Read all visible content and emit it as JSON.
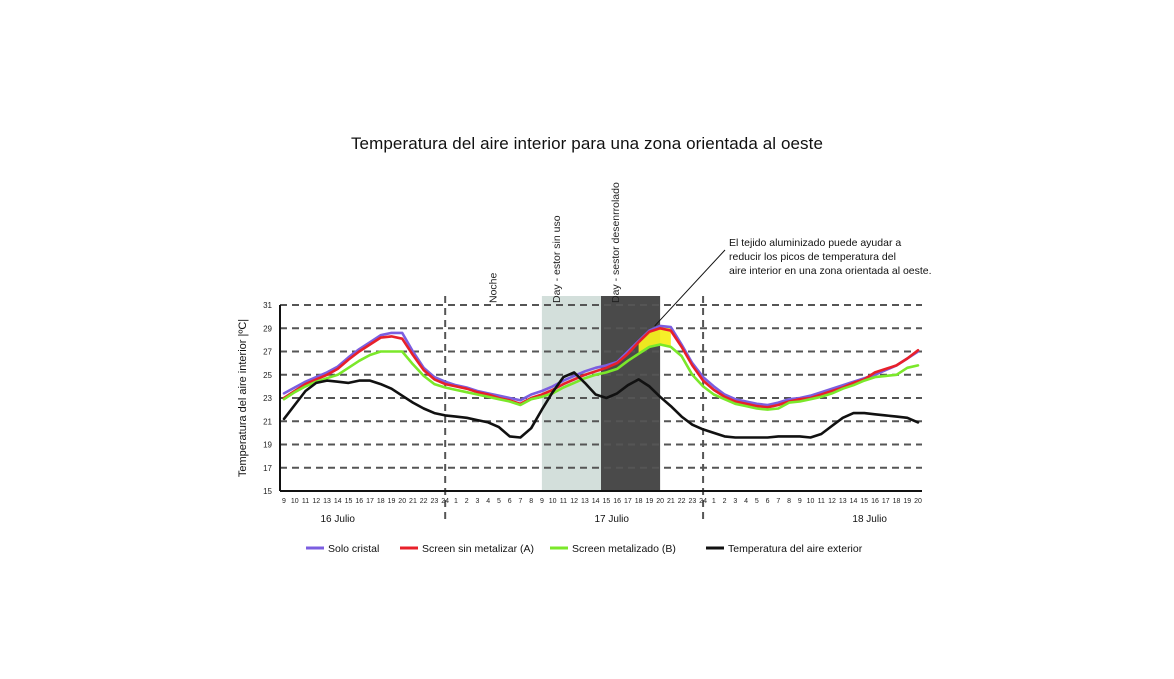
{
  "chart_data": {
    "type": "line",
    "title": "Temperatura del aire interior para una zona orientada al oeste",
    "ylabel": "Temperatura del aire interior  |ºC|",
    "ylim": [
      15,
      31
    ],
    "yticks": [
      15,
      17,
      19,
      21,
      23,
      25,
      27,
      29,
      31
    ],
    "grid": "horizontal dashed",
    "legend_position": "bottom",
    "xlim": [
      9,
      68
    ],
    "hour_labels": [
      "9",
      "10",
      "11",
      "12",
      "13",
      "14",
      "15",
      "16",
      "17",
      "18",
      "19",
      "20",
      "21",
      "22",
      "23",
      "24",
      "1",
      "2",
      "3",
      "4",
      "5",
      "6",
      "7",
      "8",
      "9",
      "10",
      "11",
      "12",
      "13",
      "14",
      "15",
      "16",
      "17",
      "18",
      "19",
      "20",
      "21",
      "22",
      "23",
      "24",
      "1",
      "2",
      "3",
      "4",
      "5",
      "6",
      "7",
      "8",
      "9",
      "10",
      "11",
      "12",
      "13",
      "14",
      "15",
      "16",
      "17",
      "18",
      "19",
      "20"
    ],
    "day_labels": [
      {
        "label": "16 Julio",
        "x": 14
      },
      {
        "label": "17 Julio",
        "x": 39.5
      },
      {
        "label": "18 Julio",
        "x": 63.5
      }
    ],
    "day_dividers": [
      24,
      48
    ],
    "periods": [
      {
        "label": "Noche",
        "x": 28.5
      },
      {
        "label": "Day - estor sin uso",
        "x_start": 33,
        "x_end": 38.5
      },
      {
        "label": "Day - sestor desenrrolado",
        "x_start": 38.5,
        "x_end": 44
      }
    ],
    "annotation": {
      "lines": [
        "El tejido aluminizado puede ayudar a",
        "reducir los picos de temperatura del",
        "aire interior en una zona orientada al oeste."
      ],
      "x": 43.5,
      "y": 29.2
    },
    "x": [
      9,
      10,
      11,
      12,
      13,
      14,
      15,
      16,
      17,
      18,
      19,
      20,
      21,
      22,
      23,
      24,
      25,
      26,
      27,
      28,
      29,
      30,
      31,
      32,
      33,
      34,
      35,
      36,
      37,
      38,
      39,
      40,
      41,
      42,
      43,
      44,
      45,
      46,
      47,
      48,
      49,
      50,
      51,
      52,
      53,
      54,
      55,
      56,
      57,
      58,
      59,
      60,
      61,
      62,
      63,
      64,
      65,
      66,
      67,
      68
    ],
    "series": [
      {
        "name": "Solo cristal",
        "color": "#7b5ee0",
        "values": [
          23.4,
          23.9,
          24.4,
          24.8,
          25.2,
          25.7,
          26.5,
          27.2,
          27.8,
          28.4,
          28.6,
          28.6,
          27.0,
          25.6,
          24.8,
          24.4,
          24.1,
          23.9,
          23.6,
          23.4,
          23.2,
          23.0,
          22.8,
          23.3,
          23.6,
          24.0,
          24.5,
          24.9,
          25.3,
          25.6,
          25.8,
          26.1,
          27.0,
          27.9,
          28.8,
          29.2,
          29.1,
          27.6,
          26.0,
          24.8,
          24.0,
          23.3,
          22.9,
          22.7,
          22.5,
          22.4,
          22.6,
          22.9,
          23.0,
          23.2,
          23.5,
          23.8,
          24.1,
          24.4,
          24.7,
          25.0,
          25.4,
          25.8,
          26.4,
          27.0
        ]
      },
      {
        "name": "Screen sin metalizar (A)",
        "color": "#e8202a",
        "values": [
          23.0,
          23.6,
          24.2,
          24.6,
          25.0,
          25.5,
          26.3,
          27.0,
          27.6,
          28.2,
          28.3,
          28.1,
          26.7,
          25.4,
          24.6,
          24.2,
          24.0,
          23.8,
          23.5,
          23.3,
          23.0,
          22.8,
          22.5,
          23.0,
          23.3,
          23.7,
          24.2,
          24.6,
          25.0,
          25.3,
          25.6,
          26.0,
          26.8,
          27.8,
          28.7,
          29.0,
          28.8,
          27.4,
          25.8,
          24.5,
          23.7,
          23.1,
          22.7,
          22.5,
          22.3,
          22.2,
          22.4,
          22.7,
          22.9,
          23.0,
          23.3,
          23.6,
          23.9,
          24.3,
          24.6,
          25.2,
          25.5,
          25.8,
          26.4,
          27.1
        ]
      },
      {
        "name": "Screen metalizado (B)",
        "color": "#7be82a",
        "values": [
          22.9,
          23.5,
          24.0,
          24.4,
          24.7,
          25.0,
          25.6,
          26.2,
          26.7,
          27.0,
          27.0,
          27.0,
          25.9,
          24.9,
          24.2,
          23.9,
          23.7,
          23.5,
          23.3,
          23.1,
          22.9,
          22.7,
          22.4,
          22.9,
          23.1,
          23.4,
          23.9,
          24.3,
          24.7,
          25.0,
          25.2,
          25.5,
          26.2,
          26.8,
          27.4,
          27.6,
          27.4,
          26.6,
          25.0,
          24.0,
          23.3,
          22.9,
          22.5,
          22.3,
          22.1,
          22.0,
          22.1,
          22.6,
          22.7,
          22.9,
          23.1,
          23.4,
          23.8,
          24.1,
          24.5,
          24.8,
          24.9,
          25.0,
          25.6,
          25.8
        ]
      },
      {
        "name": "Temperatura del aire exterior",
        "color": "#111111",
        "values": [
          21.2,
          22.4,
          23.6,
          24.3,
          24.5,
          24.4,
          24.3,
          24.5,
          24.5,
          24.2,
          23.8,
          23.2,
          22.6,
          22.1,
          21.7,
          21.5,
          21.4,
          21.3,
          21.1,
          20.9,
          20.5,
          19.7,
          19.6,
          20.4,
          22.0,
          23.5,
          24.8,
          25.2,
          24.3,
          23.3,
          23.0,
          23.4,
          24.1,
          24.6,
          24.0,
          23.1,
          22.3,
          21.4,
          20.7,
          20.3,
          20.0,
          19.7,
          19.6,
          19.6,
          19.6,
          19.6,
          19.7,
          19.7,
          19.7,
          19.6,
          19.9,
          20.6,
          21.3,
          21.7,
          21.7,
          21.6,
          21.5,
          21.4,
          21.3,
          20.9
        ]
      }
    ],
    "highlight_band": {
      "label": "",
      "between": [
        "Solo cristal",
        "Screen metalizado (B)"
      ],
      "x_range": [
        41.5,
        45.5
      ],
      "color": "#f5ef1e"
    }
  },
  "legend": {
    "items": [
      {
        "label": "Solo cristal",
        "color": "#7b5ee0"
      },
      {
        "label": "Screen sin metalizar (A)",
        "color": "#e8202a"
      },
      {
        "label": "Screen metalizado (B)",
        "color": "#7be82a"
      },
      {
        "label": "Temperatura del aire exterior",
        "color": "#111111"
      }
    ]
  },
  "colors": {
    "light_band": "#d3dfdb",
    "dark_band": "#4a4a4a",
    "grid": "#555555"
  }
}
